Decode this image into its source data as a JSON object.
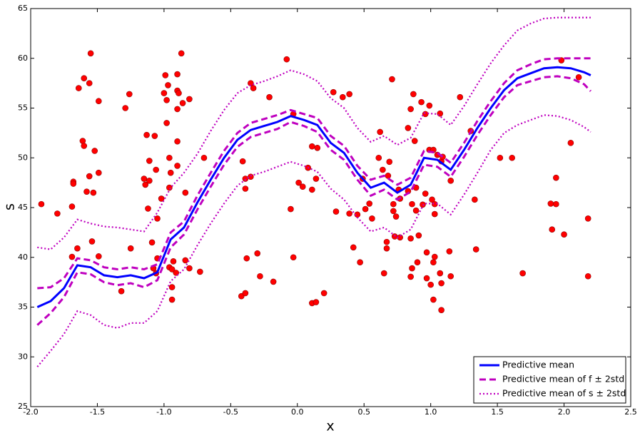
{
  "chart_data": {
    "type": "line",
    "xlabel": "x",
    "ylabel": "s",
    "xlim": [
      -2.0,
      2.5
    ],
    "ylim": [
      25,
      65
    ],
    "xticks": [
      {
        "value": -2.0,
        "label": "-2.0"
      },
      {
        "value": -1.5,
        "label": "-1.5"
      },
      {
        "value": -1.0,
        "label": "-1.0"
      },
      {
        "value": -0.5,
        "label": "-0.5"
      },
      {
        "value": 0.0,
        "label": "0.0"
      },
      {
        "value": 0.5,
        "label": "0.5"
      },
      {
        "value": 1.0,
        "label": "1.0"
      },
      {
        "value": 1.5,
        "label": "1.5"
      },
      {
        "value": 2.0,
        "label": "2.0"
      },
      {
        "value": 2.5,
        "label": "2.5"
      }
    ],
    "yticks": [
      25,
      30,
      35,
      40,
      45,
      50,
      55,
      60,
      65
    ],
    "legend": "lower right",
    "x": [
      -1.95,
      -1.85,
      -1.75,
      -1.65,
      -1.55,
      -1.45,
      -1.35,
      -1.25,
      -1.15,
      -1.05,
      -0.95,
      -0.85,
      -0.75,
      -0.65,
      -0.55,
      -0.45,
      -0.35,
      -0.25,
      -0.15,
      -0.05,
      0.05,
      0.15,
      0.25,
      0.35,
      0.45,
      0.55,
      0.65,
      0.75,
      0.85,
      0.95,
      1.05,
      1.15,
      1.25,
      1.35,
      1.45,
      1.55,
      1.65,
      1.75,
      1.85,
      1.95,
      2.05,
      2.15,
      2.2
    ],
    "series": [
      {
        "name": "Predictive mean",
        "color": "#0000ff",
        "style": "solid",
        "values": [
          35.0,
          35.6,
          36.9,
          39.2,
          39.0,
          38.2,
          38.0,
          38.2,
          37.9,
          38.5,
          41.8,
          43.0,
          45.5,
          47.8,
          50.0,
          51.8,
          52.8,
          53.2,
          53.6,
          54.2,
          53.8,
          53.3,
          51.5,
          50.5,
          48.5,
          47.0,
          47.5,
          46.5,
          47.3,
          50.0,
          49.8,
          48.8,
          50.8,
          53.0,
          55.0,
          56.8,
          58.0,
          58.5,
          59.0,
          59.1,
          59.0,
          58.6,
          58.3
        ]
      },
      {
        "name": "Predictive mean of f ± 2std",
        "color": "#bf00bf",
        "style": "dashed",
        "upper": [
          36.9,
          37.0,
          37.9,
          39.9,
          39.7,
          39.0,
          38.8,
          39.0,
          38.8,
          39.3,
          42.5,
          43.6,
          46.2,
          48.5,
          50.7,
          52.5,
          53.5,
          53.9,
          54.3,
          54.8,
          54.4,
          54.0,
          52.2,
          51.2,
          49.2,
          47.8,
          48.2,
          47.3,
          48.0,
          50.7,
          50.5,
          49.5,
          51.5,
          53.7,
          55.7,
          57.5,
          58.8,
          59.4,
          59.9,
          60.0,
          60.0,
          60.0,
          60.0
        ],
        "lower": [
          33.2,
          34.4,
          36.0,
          38.5,
          38.3,
          37.5,
          37.2,
          37.4,
          37.0,
          37.7,
          41.0,
          42.3,
          44.8,
          47.1,
          49.3,
          51.1,
          52.1,
          52.5,
          52.9,
          53.6,
          53.2,
          52.6,
          50.8,
          49.8,
          47.8,
          46.2,
          46.8,
          45.8,
          46.6,
          49.3,
          49.1,
          48.1,
          50.1,
          52.3,
          54.3,
          56.1,
          57.3,
          57.7,
          58.1,
          58.2,
          58.0,
          57.4,
          56.7
        ]
      },
      {
        "name": "Predictive mean of s ± 2std",
        "color": "#bf00bf",
        "style": "dotted",
        "upper": [
          41.0,
          40.8,
          42.0,
          43.8,
          43.4,
          43.1,
          43.0,
          42.8,
          42.6,
          44.5,
          47.0,
          48.5,
          50.4,
          52.7,
          54.8,
          56.5,
          57.3,
          57.7,
          58.2,
          58.8,
          58.4,
          57.7,
          56.0,
          55.0,
          53.0,
          51.6,
          52.2,
          51.3,
          52.0,
          54.5,
          54.4,
          53.3,
          55.2,
          57.4,
          59.5,
          61.3,
          62.8,
          63.5,
          64.0,
          64.1,
          64.1,
          64.1,
          64.1
        ],
        "lower": [
          29.0,
          30.6,
          32.3,
          34.6,
          34.2,
          33.2,
          32.9,
          33.4,
          33.4,
          34.6,
          37.6,
          38.8,
          41.2,
          43.4,
          45.4,
          47.2,
          48.2,
          48.6,
          49.1,
          49.6,
          49.2,
          48.6,
          46.9,
          45.8,
          44.0,
          42.6,
          43.0,
          42.0,
          42.8,
          45.4,
          45.4,
          44.3,
          46.3,
          48.5,
          50.8,
          52.5,
          53.3,
          53.8,
          54.3,
          54.2,
          53.8,
          53.1,
          52.6
        ]
      }
    ],
    "points": {
      "color": "#ff0000",
      "x": [
        -1.92,
        -1.8,
        -1.69,
        -1.68,
        -1.68,
        -1.69,
        -1.65,
        -1.64,
        -1.6,
        -1.61,
        -1.6,
        -1.58,
        -1.56,
        -1.55,
        -1.56,
        -1.54,
        -1.53,
        -1.52,
        -1.49,
        -1.49,
        -1.49,
        -1.32,
        -1.29,
        -1.26,
        -1.25,
        -1.15,
        -1.14,
        -1.13,
        -1.12,
        -1.11,
        -1.11,
        -1.09,
        -1.08,
        -1.07,
        -1.06,
        -1.05,
        -1.05,
        -1.06,
        -1.02,
        -1.0,
        -0.99,
        -0.98,
        -0.97,
        -0.96,
        -0.98,
        -0.96,
        -0.95,
        -0.96,
        -0.94,
        -0.93,
        -0.94,
        -0.94,
        -0.91,
        -0.9,
        -0.9,
        -0.9,
        -0.9,
        -0.9,
        -0.89,
        -0.87,
        -0.86,
        -0.84,
        -0.84,
        -0.81,
        -0.81,
        -0.73,
        -0.7,
        -0.42,
        -0.39,
        -0.41,
        -0.39,
        -0.39,
        -0.38,
        -0.35,
        -0.35,
        -0.33,
        -0.3,
        -0.28,
        -0.21,
        -0.18,
        -0.08,
        -0.05,
        -0.03,
        -0.03,
        0.01,
        0.04,
        0.08,
        0.11,
        0.11,
        0.15,
        0.14,
        0.11,
        0.14,
        0.2,
        0.27,
        0.29,
        0.34,
        0.39,
        0.39,
        0.42,
        0.45,
        0.47,
        0.49,
        0.51,
        0.54,
        0.56,
        0.62,
        0.61,
        0.64,
        0.65,
        0.67,
        0.67,
        0.68,
        0.69,
        0.71,
        0.72,
        0.72,
        0.74,
        0.73,
        0.77,
        0.76,
        0.77,
        0.83,
        0.83,
        0.85,
        0.86,
        0.85,
        0.86,
        0.85,
        0.87,
        0.88,
        0.89,
        0.89,
        0.91,
        0.9,
        0.93,
        0.94,
        0.96,
        0.96,
        0.97,
        0.99,
        0.97,
        1.0,
        0.99,
        1.01,
        1.02,
        1.02,
        1.03,
        1.02,
        1.03,
        1.03,
        1.05,
        1.07,
        1.08,
        1.07,
        1.08,
        1.08,
        1.09,
        1.14,
        1.15,
        1.15,
        1.22,
        1.3,
        1.33,
        1.34,
        1.52,
        1.61,
        1.69,
        1.9,
        1.91,
        1.94,
        1.94,
        1.98,
        2.0,
        2.05,
        2.11,
        2.18,
        2.18
      ],
      "y": [
        45.35,
        44.4,
        40.05,
        47.6,
        47.4,
        45.1,
        40.9,
        57.0,
        58.0,
        51.7,
        51.2,
        46.6,
        48.15,
        60.5,
        57.5,
        41.6,
        46.5,
        50.7,
        55.7,
        48.5,
        40.1,
        36.6,
        55.0,
        56.4,
        40.9,
        47.9,
        47.3,
        52.3,
        44.9,
        49.7,
        47.7,
        41.5,
        38.9,
        52.2,
        48.8,
        43.9,
        39.9,
        38.4,
        45.9,
        56.5,
        58.3,
        53.5,
        57.3,
        50.0,
        55.8,
        47.0,
        48.5,
        39.0,
        38.8,
        39.6,
        37.0,
        35.75,
        38.45,
        58.4,
        56.75,
        54.9,
        51.65,
        49.2,
        56.5,
        60.5,
        55.5,
        46.5,
        39.7,
        55.9,
        38.9,
        38.55,
        50.0,
        36.1,
        36.4,
        49.65,
        47.9,
        46.9,
        39.9,
        48.1,
        57.5,
        57.0,
        40.4,
        38.1,
        56.1,
        37.55,
        59.9,
        44.85,
        40.0,
        54.4,
        47.5,
        47.1,
        49.0,
        46.8,
        51.15,
        51.0,
        47.9,
        35.4,
        35.5,
        36.4,
        56.6,
        44.6,
        56.1,
        56.4,
        44.4,
        41.0,
        44.3,
        39.5,
        47.9,
        44.85,
        45.4,
        43.9,
        52.6,
        50.0,
        48.8,
        38.4,
        41.55,
        40.9,
        48.2,
        49.6,
        57.9,
        45.35,
        44.65,
        44.1,
        42.1,
        42.0,
        46.8,
        45.9,
        46.65,
        53.0,
        54.9,
        45.35,
        41.9,
        38.9,
        38.05,
        56.4,
        51.7,
        47.0,
        44.7,
        42.2,
        39.5,
        55.6,
        45.3,
        46.4,
        54.4,
        40.5,
        50.8,
        37.9,
        37.25,
        55.25,
        45.8,
        39.5,
        50.8,
        45.35,
        35.75,
        40.05,
        44.35,
        50.3,
        54.45,
        49.65,
        38.4,
        37.4,
        34.7,
        50.1,
        40.6,
        38.1,
        47.7,
        56.1,
        52.7,
        45.8,
        40.8,
        50.0,
        50.0,
        38.4,
        45.4,
        42.8,
        48.0,
        45.35,
        59.8,
        42.3,
        51.5,
        58.1,
        43.9,
        38.1
      ]
    }
  }
}
